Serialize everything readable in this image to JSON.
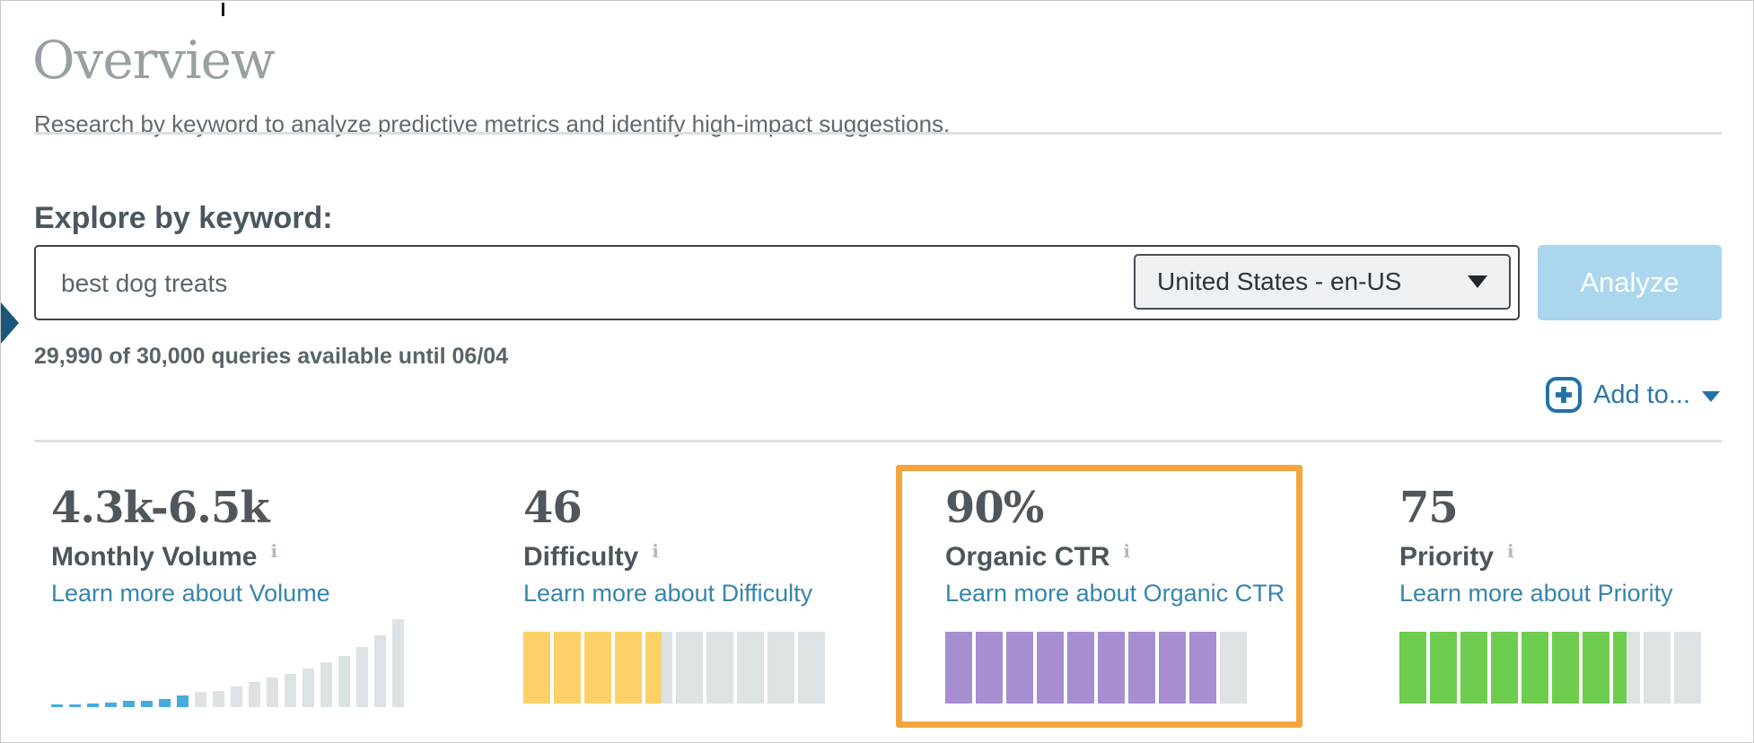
{
  "page": {
    "title": "Overview",
    "subtitle": "Research by keyword to analyze predictive metrics and identify high-impact suggestions.",
    "section_heading": "Explore by keyword:"
  },
  "search": {
    "keyword_value": "best dog treats",
    "locale_selected": "United States - en-US",
    "analyze_label": "Analyze",
    "quota_text": "29,990 of 30,000 queries available until 06/04",
    "add_to_label": "Add to..."
  },
  "icons": {
    "info_glyph": "i",
    "plus_icon": "plus in rounded square",
    "dropdown_caret": "solid down triangle",
    "side_marker": "right-pointing triangle at left edge"
  },
  "colors": {
    "link_blue": "#3585ac",
    "action_blue": "#2272a7",
    "analyze_button_bg": "#aad7ee",
    "highlight_orange": "#f5a43e",
    "volume_bar_blue": "#45abdf",
    "difficulty_yellow": "#fbd168",
    "ctr_purple": "#a78ed1",
    "priority_green": "#6ecc4e",
    "gauge_empty_gray": "#dde3e4",
    "value_text": "#4f575c",
    "title_gray": "#97a1a3"
  },
  "metrics": [
    {
      "id": "monthly-volume",
      "value": "4.3k-6.5k",
      "label": "Monthly Volume",
      "link": "Learn more about Volume",
      "chart": {
        "type": "bar",
        "description": "volume distribution histogram, keyword range highlighted",
        "active_count": 8,
        "bar_color_active": "#45abdf",
        "bar_color_inactive": "#dde3e4",
        "heights": [
          3,
          3,
          4,
          5,
          7,
          7,
          9,
          13,
          17,
          18,
          23,
          28,
          33,
          37,
          43,
          50,
          57,
          67,
          80,
          98
        ]
      }
    },
    {
      "id": "difficulty",
      "value": "46",
      "label": "Difficulty",
      "link": "Learn more about Difficulty",
      "gauge": {
        "segments": 10,
        "fill": 4.6,
        "color": "#fbd168",
        "empty_color": "#dde3e4"
      }
    },
    {
      "id": "organic-ctr",
      "value": "90%",
      "label": "Organic CTR",
      "link": "Learn more about Organic CTR",
      "highlighted": true,
      "highlight_color": "#f5a43e",
      "gauge": {
        "segments": 10,
        "fill": 9,
        "color": "#a78ed1",
        "empty_color": "#dde3e4"
      }
    },
    {
      "id": "priority",
      "value": "75",
      "label": "Priority",
      "link": "Learn more about Priority",
      "gauge": {
        "segments": 10,
        "fill": 7.5,
        "color": "#6ecc4e",
        "empty_color": "#dde3e4"
      }
    }
  ]
}
